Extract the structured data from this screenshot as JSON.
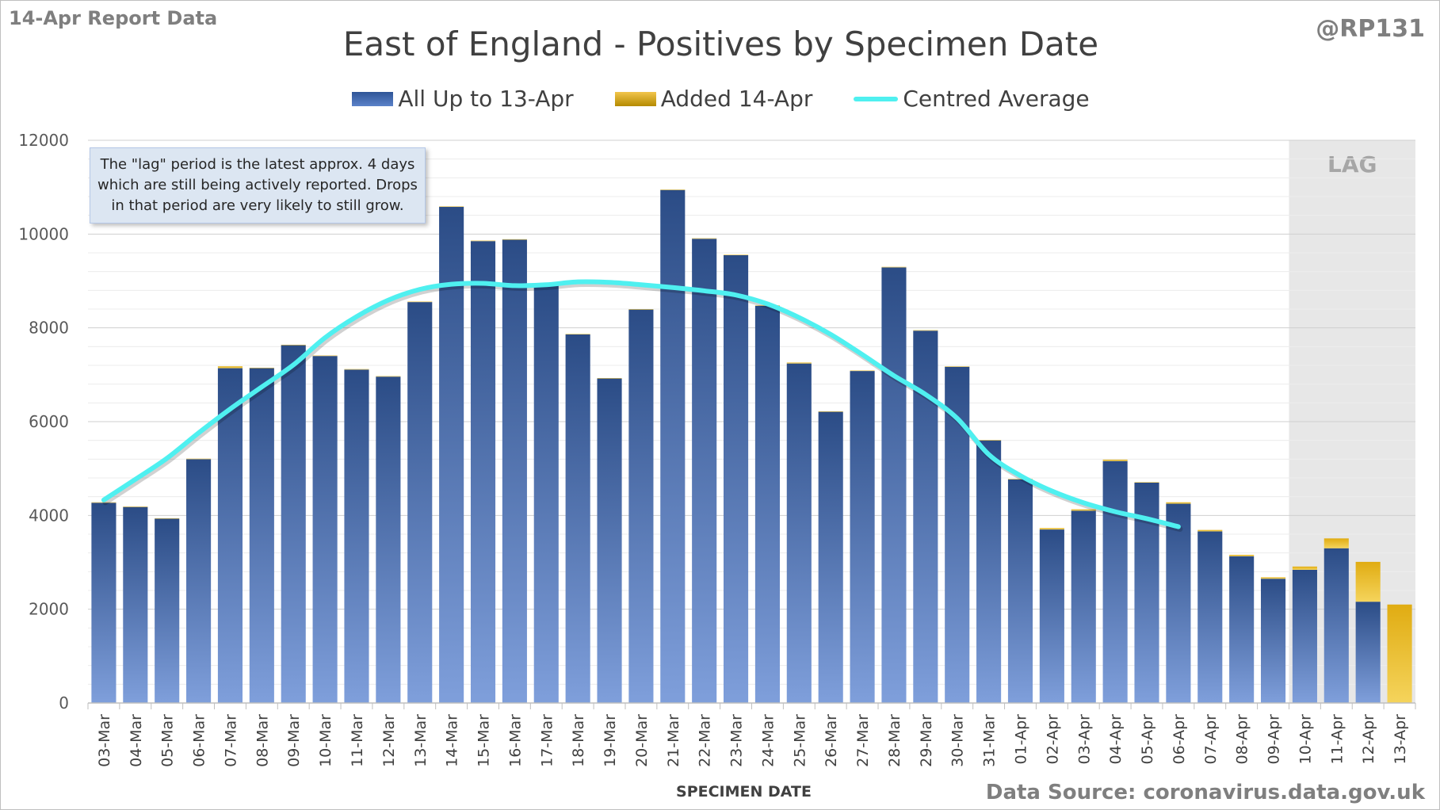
{
  "header": {
    "report_label": "14-Apr Report Data",
    "handle": "@RP131",
    "title": "East of England - Positives by Specimen Date"
  },
  "legend": {
    "items": [
      {
        "label": "All Up to 13-Apr",
        "swatch": "blue-gradient"
      },
      {
        "label": "Added 14-Apr",
        "swatch": "gold-gradient"
      },
      {
        "label": "Centred Average",
        "swatch": "cyan-line"
      }
    ]
  },
  "callout": {
    "lines": [
      "The \"lag\" period is the latest approx. 4 days",
      "which are still being actively reported.  Drops",
      "in that period are very likely to still grow."
    ]
  },
  "footer": {
    "source": "Data Source: coronavirus.data.gov.uk"
  },
  "colors": {
    "bar_blue_top": "#2b4c86",
    "bar_blue_bottom": "#7f9fdb",
    "bar_gold_top": "#e0ac12",
    "bar_gold_bottom": "#f5d45c",
    "average_line": "#4ff0f0",
    "lag_shade": "#e7e7e7",
    "gridline": "#d9d9d9"
  },
  "chart_data": {
    "type": "bar",
    "stacked": true,
    "title": "East of England - Positives by Specimen Date",
    "xlabel": "SPECIMEN DATE",
    "ylabel": "",
    "ylim": [
      0,
      12000
    ],
    "y_ticks": [
      0,
      2000,
      4000,
      6000,
      8000,
      10000,
      12000
    ],
    "grid": true,
    "legend_position": "top",
    "lag_label": "LAG",
    "lag_categories": [
      "10-Apr",
      "11-Apr",
      "12-Apr",
      "13-Apr"
    ],
    "categories": [
      "03-Mar",
      "04-Mar",
      "05-Mar",
      "06-Mar",
      "07-Mar",
      "08-Mar",
      "09-Mar",
      "10-Mar",
      "11-Mar",
      "12-Mar",
      "13-Mar",
      "14-Mar",
      "15-Mar",
      "16-Mar",
      "17-Mar",
      "18-Mar",
      "19-Mar",
      "20-Mar",
      "21-Mar",
      "22-Mar",
      "23-Mar",
      "24-Mar",
      "25-Mar",
      "26-Mar",
      "27-Mar",
      "28-Mar",
      "29-Mar",
      "30-Mar",
      "31-Mar",
      "01-Apr",
      "02-Apr",
      "03-Apr",
      "04-Apr",
      "05-Apr",
      "06-Apr",
      "07-Apr",
      "08-Apr",
      "09-Apr",
      "10-Apr",
      "11-Apr",
      "12-Apr",
      "13-Apr"
    ],
    "series": [
      {
        "name": "All Up to 13-Apr",
        "values": [
          4270,
          4180,
          3930,
          5200,
          7140,
          7140,
          7630,
          7400,
          7110,
          6960,
          8550,
          10580,
          9850,
          9880,
          8940,
          7860,
          6920,
          8390,
          10940,
          9900,
          9550,
          8470,
          7240,
          6210,
          7080,
          9290,
          7940,
          7170,
          5600,
          4770,
          3700,
          4100,
          5160,
          4700,
          4250,
          3660,
          3130,
          2650,
          2840,
          3300,
          2160,
          0
        ]
      },
      {
        "name": "Added 14-Apr",
        "values": [
          10,
          10,
          10,
          10,
          40,
          10,
          10,
          10,
          10,
          10,
          10,
          10,
          10,
          10,
          10,
          10,
          10,
          10,
          10,
          10,
          10,
          10,
          20,
          10,
          10,
          10,
          10,
          10,
          10,
          10,
          30,
          30,
          30,
          10,
          30,
          30,
          30,
          30,
          70,
          210,
          850,
          2100
        ]
      },
      {
        "name": "Centred Average",
        "type": "line",
        "values": [
          4330,
          4770,
          5220,
          5760,
          6270,
          6740,
          7210,
          7790,
          8240,
          8590,
          8820,
          8930,
          8950,
          8900,
          8920,
          8980,
          8970,
          8920,
          8860,
          8790,
          8700,
          8510,
          8220,
          7860,
          7430,
          6980,
          6580,
          6070,
          5300,
          4850,
          4520,
          4270,
          4080,
          3930,
          3760,
          null,
          null,
          null,
          null,
          null,
          null,
          null
        ]
      }
    ]
  }
}
